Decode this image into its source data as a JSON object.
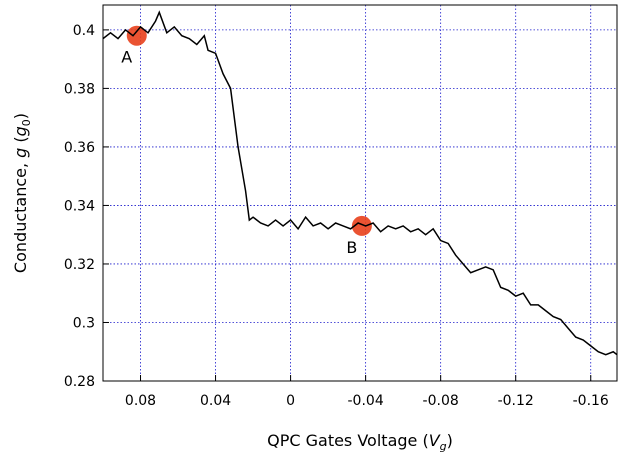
{
  "chart_data": {
    "type": "line",
    "xlabel": [
      "QPC Gates Voltage (",
      "V",
      "g",
      ")"
    ],
    "ylabel": [
      "Conductance, ",
      "g",
      " (",
      "g",
      "0",
      ")"
    ],
    "xlim": [
      0.1,
      -0.174
    ],
    "ylim": [
      0.28,
      0.4085
    ],
    "xticks": [
      0.08,
      0.04,
      0,
      -0.04,
      -0.08,
      -0.12,
      -0.16
    ],
    "yticks": [
      0.28,
      0.3,
      0.32,
      0.34,
      0.36,
      0.38,
      0.4
    ],
    "grid": true,
    "grid_color": "#1a1acc",
    "series": [
      {
        "color": "#000000",
        "x": [
          0.1,
          0.096,
          0.092,
          0.088,
          0.084,
          0.08,
          0.076,
          0.072,
          0.07,
          0.066,
          0.062,
          0.058,
          0.054,
          0.05,
          0.046,
          0.044,
          0.04,
          0.036,
          0.032,
          0.028,
          0.024,
          0.022,
          0.02,
          0.016,
          0.012,
          0.008,
          0.004,
          0,
          -0.004,
          -0.008,
          -0.012,
          -0.016,
          -0.02,
          -0.024,
          -0.028,
          -0.032,
          -0.036,
          -0.04,
          -0.044,
          -0.048,
          -0.052,
          -0.056,
          -0.06,
          -0.064,
          -0.068,
          -0.072,
          -0.076,
          -0.08,
          -0.084,
          -0.088,
          -0.092,
          -0.096,
          -0.1,
          -0.104,
          -0.108,
          -0.112,
          -0.116,
          -0.12,
          -0.124,
          -0.128,
          -0.132,
          -0.136,
          -0.14,
          -0.144,
          -0.148,
          -0.152,
          -0.156,
          -0.16,
          -0.164,
          -0.168,
          -0.172,
          -0.174
        ],
        "values": [
          0.397,
          0.399,
          0.397,
          0.4,
          0.398,
          0.401,
          0.399,
          0.403,
          0.406,
          0.399,
          0.401,
          0.398,
          0.397,
          0.395,
          0.398,
          0.393,
          0.392,
          0.385,
          0.38,
          0.36,
          0.345,
          0.335,
          0.336,
          0.334,
          0.333,
          0.335,
          0.333,
          0.335,
          0.332,
          0.336,
          0.333,
          0.334,
          0.332,
          0.334,
          0.333,
          0.332,
          0.334,
          0.333,
          0.334,
          0.331,
          0.333,
          0.332,
          0.333,
          0.331,
          0.332,
          0.33,
          0.332,
          0.328,
          0.327,
          0.323,
          0.32,
          0.317,
          0.318,
          0.319,
          0.318,
          0.312,
          0.311,
          0.309,
          0.31,
          0.306,
          0.306,
          0.304,
          0.302,
          0.301,
          0.298,
          0.295,
          0.294,
          0.292,
          0.29,
          0.289,
          0.29,
          0.289
        ]
      }
    ],
    "annotations": [
      {
        "text": "A",
        "x": 0.082,
        "y": 0.398,
        "color": "#e8401c"
      },
      {
        "text": "B",
        "x": -0.038,
        "y": 0.333,
        "color": "#e8401c"
      }
    ]
  }
}
